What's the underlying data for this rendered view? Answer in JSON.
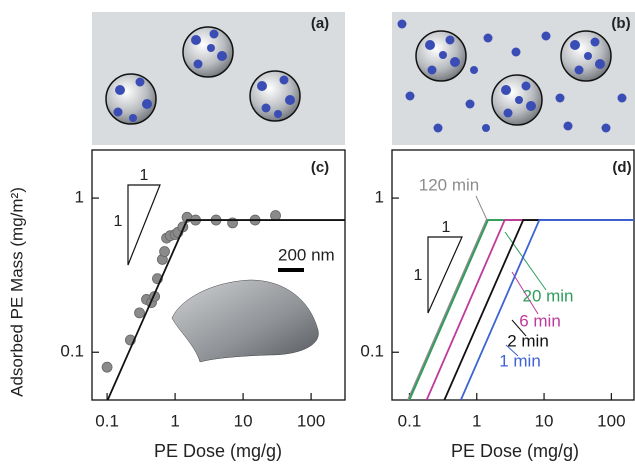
{
  "illustrations": [
    {
      "label": "(a)"
    },
    {
      "label": "(b)"
    }
  ],
  "chart_data": [
    {
      "type": "scatter",
      "panel_label": "(c)",
      "xlabel": "PE Dose (mg/g)",
      "ylabel": "Adsorbed PE Mass (mg/m²)",
      "xscale": "log",
      "yscale": "log",
      "xlim": [
        0.06,
        315
      ],
      "ylim": [
        0.049,
        2.05
      ],
      "xticks": [
        0.1,
        1,
        10,
        100
      ],
      "yticks": [
        0.1,
        1
      ],
      "slope_labels": [
        "1",
        "1"
      ],
      "scale_bar": "200 nm",
      "series": [
        {
          "mode": "markers",
          "color": "#8a8a8a",
          "x": [
            0.1,
            0.22,
            0.3,
            0.38,
            0.45,
            0.5,
            0.55,
            0.65,
            0.7,
            0.75,
            0.85,
            1.0,
            1.1,
            1.3,
            1.5,
            2,
            4,
            7,
            15,
            30
          ],
          "values": [
            0.08,
            0.12,
            0.18,
            0.22,
            0.21,
            0.23,
            0.3,
            0.4,
            0.45,
            0.55,
            0.57,
            0.58,
            0.6,
            0.65,
            0.75,
            0.72,
            0.72,
            0.69,
            0.72,
            0.77
          ]
        },
        {
          "mode": "line",
          "color": "#111111",
          "x": [
            0.102,
            1.5,
            315
          ],
          "values": [
            0.049,
            0.72,
            0.72
          ]
        }
      ]
    },
    {
      "type": "line",
      "panel_label": "(d)",
      "xlabel": "PE Dose (mg/g)",
      "xscale": "log",
      "yscale": "log",
      "xlim": [
        0.055,
        217
      ],
      "ylim": [
        0.049,
        2.05
      ],
      "xticks": [
        0.1,
        1,
        10,
        100
      ],
      "yticks": [
        0.1,
        1
      ],
      "slope_labels": [
        "1",
        "1"
      ],
      "series": [
        {
          "name": "120 min",
          "color": "#8c8c8c",
          "x": [
            0.095,
            1.4,
            217
          ],
          "values": [
            0.049,
            0.72,
            0.72
          ]
        },
        {
          "name": "20 min",
          "color": "#2e9e5b",
          "x": [
            0.1,
            1.47,
            217
          ],
          "values": [
            0.049,
            0.72,
            0.72
          ]
        },
        {
          "name": "6 min",
          "color": "#c0399b",
          "x": [
            0.18,
            2.6,
            217
          ],
          "values": [
            0.049,
            0.72,
            0.72
          ]
        },
        {
          "name": "2 min",
          "color": "#111111",
          "x": [
            0.33,
            4.9,
            217
          ],
          "values": [
            0.049,
            0.72,
            0.72
          ]
        },
        {
          "name": "1 min",
          "color": "#3d63d4",
          "x": [
            0.58,
            8.5,
            217
          ],
          "values": [
            0.049,
            0.72,
            0.72
          ]
        }
      ]
    }
  ]
}
